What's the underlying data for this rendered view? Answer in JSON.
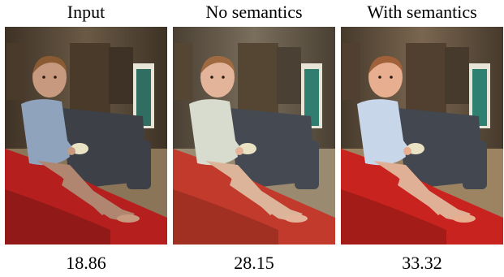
{
  "panels": [
    {
      "title": "Input",
      "score": "18.86",
      "tone": {
        "wall": "#6a5a45",
        "wall_dark": "#3e3226",
        "floor": "#8a7558",
        "sofa": "#3d4147",
        "blanket": "#b5201e",
        "blanket_dark": "#7a1612",
        "shirt": "#8fa3bd",
        "skin": "#c79a80",
        "hair": "#8a5a33",
        "legs": "#b08670",
        "door": "#2f6e60",
        "shelf": "#4a3a2a"
      }
    },
    {
      "title": "No semantics",
      "score": "28.15",
      "tone": {
        "wall": "#7a6e5c",
        "wall_dark": "#4a4033",
        "floor": "#9a8a70",
        "sofa": "#454a52",
        "blanket": "#c23a2c",
        "blanket_dark": "#8a2a1e",
        "shirt": "#d8dccf",
        "skin": "#e3b49a",
        "hair": "#a06a40",
        "legs": "#dcb49a",
        "door": "#2f7e70",
        "shelf": "#554533"
      }
    },
    {
      "title": "With semantics",
      "score": "33.32",
      "tone": {
        "wall": "#7a6650",
        "wall_dark": "#463a2c",
        "floor": "#9c8463",
        "sofa": "#424750",
        "blanket": "#c8231f",
        "blanket_dark": "#8c1814",
        "shirt": "#c8d6ea",
        "skin": "#e7ae90",
        "hair": "#a0603a",
        "legs": "#e0b096",
        "door": "#2e8070",
        "shelf": "#514030"
      }
    }
  ]
}
